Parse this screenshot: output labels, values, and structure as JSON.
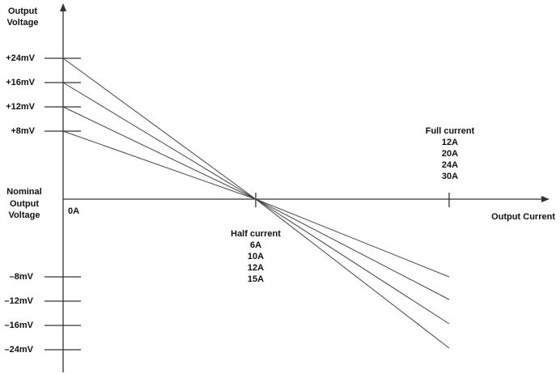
{
  "y_axis_label": [
    "Output",
    "Voltage"
  ],
  "x_axis_label": "Output Current",
  "positive_levels": [
    "+24mV",
    "+16mV",
    "+12mV",
    "+8mV"
  ],
  "nominal_label": [
    "Nominal",
    "Output",
    "Voltage"
  ],
  "negative_levels": [
    "–8mV",
    "–12mV",
    "–16mV",
    "–24mV"
  ],
  "zero_current": "0A",
  "half_current": {
    "title": "Half current",
    "values": [
      "6A",
      "10A",
      "12A",
      "15A"
    ]
  },
  "full_current": {
    "title": "Full current",
    "values": [
      "12A",
      "20A",
      "24A",
      "30A"
    ]
  }
}
